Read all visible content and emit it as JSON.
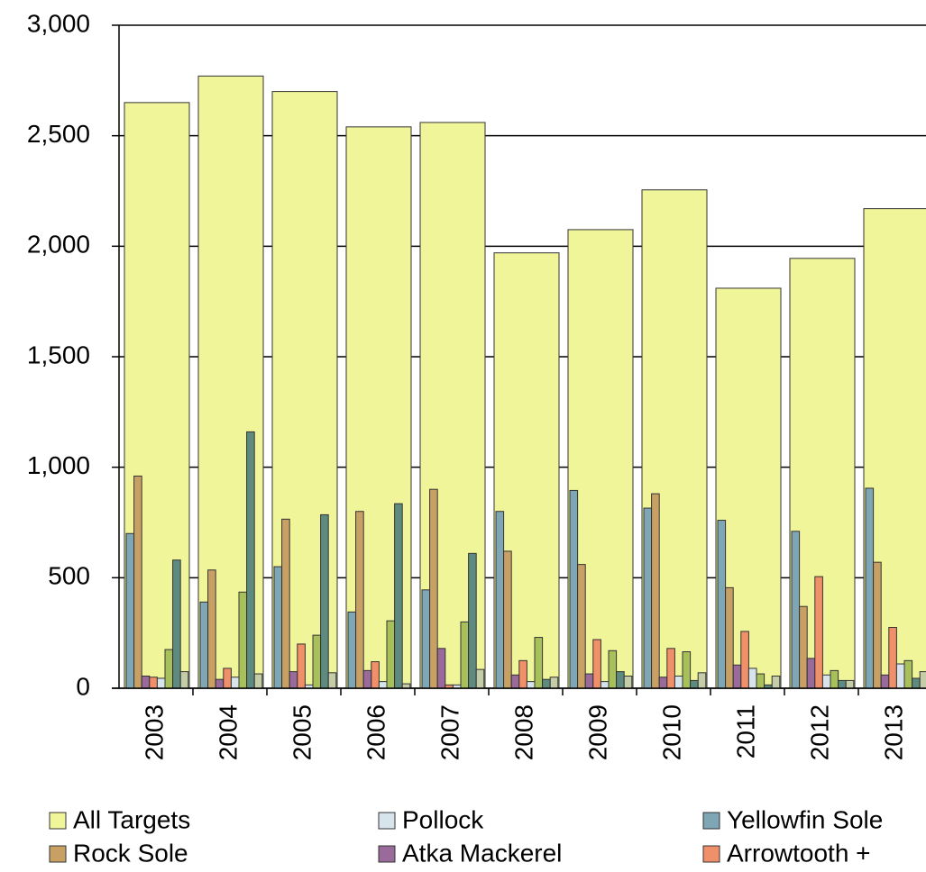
{
  "chart_data": {
    "type": "bar",
    "categories": [
      "2003",
      "2004",
      "2005",
      "2006",
      "2007",
      "2008",
      "2009",
      "2010",
      "2011",
      "2012",
      "2013"
    ],
    "ylim": [
      0,
      3000
    ],
    "yticks": [
      0,
      {
        "value": 500,
        "label": "500"
      },
      {
        "value": 1000,
        "label": "1,000"
      },
      {
        "value": 1500,
        "label": "1,500"
      },
      {
        "value": 2000,
        "label": "2,000"
      },
      {
        "value": 2500,
        "label": "2,500"
      },
      {
        "value": 3000,
        "label": "3,000"
      }
    ],
    "grid": true,
    "legend": "bottom",
    "series": [
      {
        "name": "All Targets",
        "color": "#f0f59a",
        "values": [
          2650,
          2770,
          2700,
          2540,
          2560,
          1970,
          2075,
          2255,
          1810,
          1945,
          2170
        ]
      },
      {
        "name": "Yellowfin Sole",
        "color": "#7fa6b4",
        "values": [
          700,
          390,
          550,
          345,
          445,
          800,
          895,
          815,
          760,
          710,
          905
        ]
      },
      {
        "name": "Rock Sole",
        "color": "#c8a064",
        "values": [
          960,
          535,
          765,
          800,
          900,
          620,
          560,
          880,
          455,
          370,
          570
        ]
      },
      {
        "name": "Atka Mackerel",
        "color": "#9a6a9a",
        "values": [
          55,
          40,
          75,
          80,
          180,
          60,
          65,
          50,
          105,
          135,
          60
        ]
      },
      {
        "name": "Arrowtooth +",
        "color": "#f0906a",
        "values": [
          50,
          90,
          200,
          120,
          15,
          125,
          220,
          180,
          257,
          505,
          275
        ]
      },
      {
        "name": "Pollock",
        "color": "#d8e4ec",
        "values": [
          45,
          50,
          15,
          30,
          15,
          30,
          30,
          55,
          90,
          60,
          110
        ]
      },
      {
        "color": "#a8c05a",
        "values": [
          175,
          435,
          240,
          305,
          300,
          230,
          170,
          165,
          65,
          80,
          125
        ]
      },
      {
        "color": "#5e8a80",
        "values": [
          580,
          1160,
          785,
          835,
          610,
          40,
          75,
          35,
          15,
          35,
          45
        ]
      },
      {
        "color": "#c4cca8",
        "values": [
          75,
          65,
          70,
          20,
          85,
          50,
          55,
          70,
          55,
          35,
          75
        ]
      }
    ],
    "legend_order": [
      0,
      5,
      1,
      2,
      3,
      4
    ]
  }
}
